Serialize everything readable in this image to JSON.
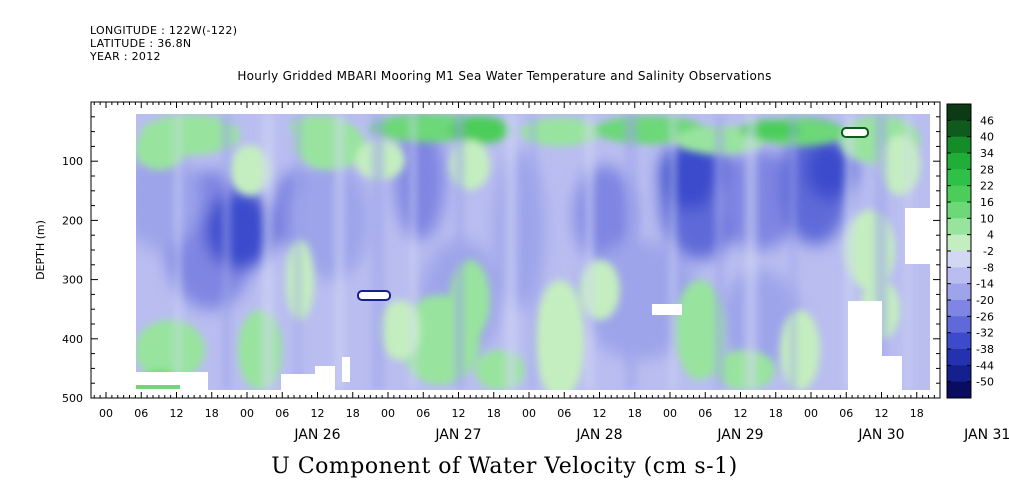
{
  "header": {
    "longitude": "LONGITUDE : 122W(-122)",
    "latitude": "LATITUDE : 36.8N",
    "year": "YEAR : 2012"
  },
  "title": "Hourly Gridded MBARI Mooring M1 Sea Water Temperature and Salinity Observations",
  "caption": "U Component of Water Velocity (cm s-1)",
  "chart_data": {
    "type": "heatmap",
    "title": "Hourly Gridded MBARI Mooring M1 Sea Water Temperature and Salinity Observations",
    "xlabel": "",
    "ylabel": "DEPTH (m)",
    "variable": "U Component of Water Velocity (cm s-1)",
    "ylim": [
      500,
      0
    ],
    "y_ticks": [
      100,
      200,
      300,
      400,
      500
    ],
    "x_hour_ticks": [
      "00",
      "06",
      "12",
      "18",
      "00",
      "06",
      "12",
      "18",
      "00",
      "06",
      "12",
      "18",
      "00",
      "06",
      "12",
      "18",
      "00",
      "06",
      "12",
      "18",
      "00",
      "06",
      "12",
      "18"
    ],
    "x_day_labels": [
      "JAN 26",
      "JAN 27",
      "JAN 28",
      "JAN 29",
      "JAN 30",
      "JAN 31"
    ],
    "colorbar_levels": [
      46,
      40,
      34,
      28,
      22,
      16,
      10,
      4,
      -2,
      -8,
      -14,
      -20,
      -26,
      -32,
      -38,
      -44,
      -50
    ],
    "colorbar_colors": [
      "#0c3a14",
      "#0f5a1c",
      "#148c28",
      "#1fae38",
      "#2fc048",
      "#4ccd5a",
      "#6cd878",
      "#98e49e",
      "#c4eebf",
      "#d2d8f4",
      "#b9bdf0",
      "#9ea4ea",
      "#7f85e2",
      "#5f6ad8",
      "#3b4bcc",
      "#2532b0",
      "#14208c",
      "#0a0c60"
    ],
    "depth_range_observed": [
      20,
      488
    ],
    "patterns": [
      {
        "feature": "near-surface positive (eastward) flow",
        "depth": [
          20,
          120
        ],
        "value_approx": 10
      },
      {
        "feature": "mid-depth negative (westward) core, JAN 26 late",
        "depth": [
          150,
          320
        ],
        "value_approx": -26
      },
      {
        "feature": "mid-depth negative core, JAN 30 early",
        "depth": [
          100,
          260
        ],
        "value_approx": -26
      },
      {
        "feature": "deep positive patches",
        "depth": [
          280,
          480
        ],
        "value_approx": 4
      }
    ]
  }
}
